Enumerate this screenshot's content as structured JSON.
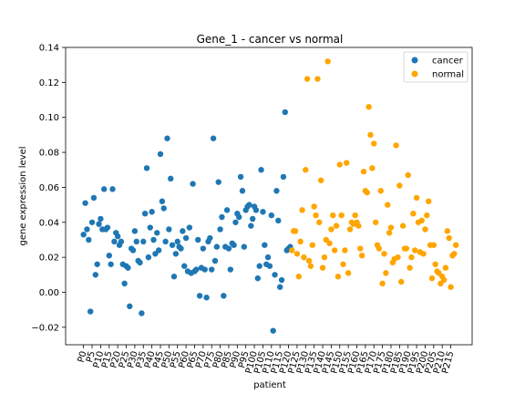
{
  "chart_data": {
    "type": "scatter",
    "title": "Gene_1 - cancer vs normal",
    "xlabel": "patient",
    "ylabel": "gene expression level",
    "ylim": [
      -0.03,
      0.14
    ],
    "yticks": [
      -0.02,
      0.0,
      0.02,
      0.04,
      0.06,
      0.08,
      0.1,
      0.12,
      0.14
    ],
    "ytick_labels": [
      "−0.02",
      "0.00",
      "0.02",
      "0.04",
      "0.06",
      "0.08",
      "0.10",
      "0.12",
      "0.14"
    ],
    "xtick_every": 5,
    "xtick_prefix": "P",
    "num_patients": 219,
    "grid": false,
    "legend": "top-right",
    "series": [
      {
        "name": "cancer",
        "color": "#1f77b4",
        "x_start": 0,
        "values": [
          0.033,
          0.051,
          0.036,
          0.03,
          -0.011,
          0.04,
          0.054,
          0.01,
          0.016,
          0.039,
          0.042,
          0.036,
          0.059,
          0.036,
          0.037,
          0.021,
          0.016,
          0.059,
          0.029,
          0.034,
          0.032,
          0.027,
          0.029,
          0.016,
          0.005,
          0.015,
          0.014,
          -0.008,
          0.025,
          0.024,
          0.035,
          0.029,
          0.018,
          0.017,
          -0.012,
          0.029,
          0.045,
          0.071,
          0.02,
          0.037,
          0.046,
          0.03,
          0.022,
          0.034,
          0.024,
          0.079,
          0.052,
          0.048,
          0.029,
          0.088,
          0.036,
          0.065,
          0.027,
          0.009,
          0.022,
          0.029,
          0.026,
          0.025,
          0.035,
          0.015,
          0.031,
          0.012,
          0.037,
          0.011,
          0.062,
          0.012,
          0.013,
          0.03,
          -0.002,
          0.014,
          0.025,
          0.013,
          -0.003,
          0.029,
          0.031,
          0.013,
          0.088,
          0.018,
          0.026,
          0.063,
          0.036,
          0.043,
          -0.002,
          0.026,
          0.047,
          0.025,
          0.013,
          0.028,
          0.027,
          0.04,
          0.045,
          0.043,
          0.066,
          0.058,
          0.026,
          0.047,
          0.049,
          0.05,
          0.038,
          0.042,
          0.049,
          0.047,
          0.008,
          0.015,
          0.07,
          0.046,
          0.027,
          0.016,
          0.02,
          0.015,
          0.044,
          -0.022,
          0.01,
          0.058,
          0.041,
          0.003,
          0.007,
          0.066,
          0.103,
          0.024,
          0.025,
          0.026
        ]
      },
      {
        "name": "normal",
        "color": "#ffa500",
        "x_start": 122,
        "values": [
          0.024,
          0.035,
          0.035,
          0.022,
          0.009,
          0.029,
          0.047,
          0.02,
          0.07,
          0.122,
          0.018,
          0.015,
          0.027,
          0.049,
          0.044,
          0.122,
          0.04,
          0.064,
          0.014,
          0.02,
          0.03,
          0.132,
          0.028,
          0.036,
          0.044,
          0.024,
          0.038,
          0.009,
          0.073,
          0.044,
          0.016,
          0.024,
          0.074,
          0.011,
          0.036,
          0.04,
          0.039,
          0.044,
          0.04,
          0.038,
          0.025,
          0.021,
          0.069,
          0.058,
          0.057,
          0.106,
          0.09,
          0.071,
          0.085,
          0.04,
          0.027,
          0.025,
          0.058,
          0.005,
          0.022,
          0.011,
          0.05,
          0.034,
          0.037,
          0.017,
          0.019,
          0.084,
          0.02,
          0.061,
          0.006,
          0.038,
          0.025,
          0.025,
          0.067,
          0.014,
          0.02,
          0.045,
          0.024,
          0.054,
          0.04,
          0.023,
          0.041,
          0.022,
          0.036,
          0.044,
          0.052,
          0.027,
          0.008,
          0.027,
          0.016,
          0.012,
          0.011,
          0.005,
          0.009,
          0.007,
          0.014,
          0.035,
          0.031,
          0.003,
          0.021,
          0.022,
          0.027
        ]
      }
    ]
  }
}
